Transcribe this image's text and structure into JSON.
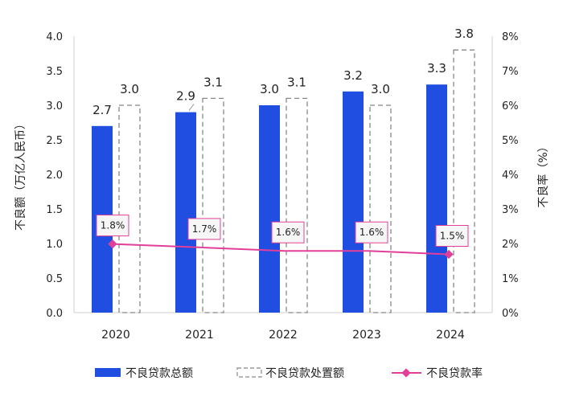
{
  "chart_data": {
    "type": "bar",
    "categories": [
      "2020",
      "2021",
      "2022",
      "2023",
      "2024"
    ],
    "series": [
      {
        "name": "不良贷款总额",
        "kind": "bar",
        "axis": "left",
        "style": "solid",
        "color": "#1f4ee0",
        "values": [
          2.7,
          2.9,
          3.0,
          3.2,
          3.3
        ],
        "labels": [
          "2.7",
          "2.9",
          "3.0",
          "3.2",
          "3.3"
        ]
      },
      {
        "name": "不良贷款处置额",
        "kind": "bar",
        "axis": "left",
        "style": "dashed-outline",
        "color": "#888888",
        "values": [
          3.0,
          3.1,
          3.1,
          3.0,
          3.8
        ],
        "labels": [
          "3.0",
          "3.1",
          "3.1",
          "3.0",
          "3.8"
        ]
      },
      {
        "name": "不良贷款率",
        "kind": "line",
        "axis": "right",
        "color": "#e0409a",
        "values": [
          1.8,
          1.7,
          1.6,
          1.6,
          1.5
        ],
        "labels": [
          "1.8%",
          "1.7%",
          "1.6%",
          "1.6%",
          "1.5%"
        ]
      }
    ],
    "ylabel": "不良额（万亿人民币）",
    "y2label": "不良率（%）",
    "ylim": [
      0,
      4.0
    ],
    "y2lim": [
      0,
      8
    ],
    "yticks": [
      "0.0",
      "0.5",
      "1.0",
      "1.5",
      "2.0",
      "2.5",
      "3.0",
      "3.5",
      "4.0"
    ],
    "y2ticks": [
      "0%",
      "1%",
      "2%",
      "3%",
      "4%",
      "5%",
      "6%",
      "7%",
      "8%"
    ],
    "grid": false,
    "legend": "bottom"
  }
}
